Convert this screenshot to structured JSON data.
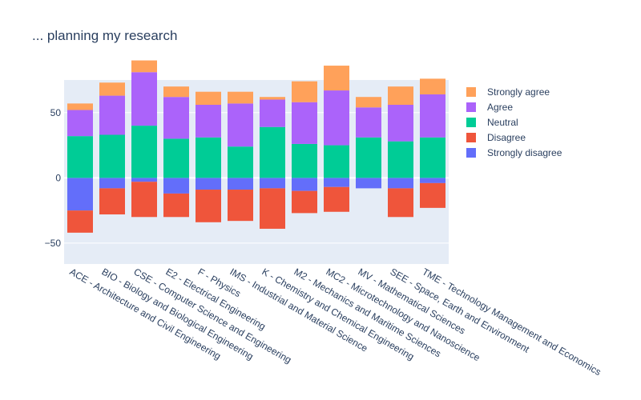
{
  "chart_data": {
    "type": "bar",
    "barmode": "relative",
    "title": "... planning my research",
    "categories": [
      "ACE - Architecture and Civil Engineering",
      "BIO - Biology and Biological Engineering",
      "CSE - Computer Science and Engineering",
      "E2 - Electrical Engineering",
      "F - Physics",
      "IMS - Industrial and Material Science",
      "K - Chemistry and Chemical Engineering",
      "M2 - Mechanics and Maritime Sciences",
      "MC2 - Microtechnology and Nanoscience",
      "MV - Mathematical Sciences",
      "SEE - Space, Earth and Environment",
      "TME - Technology Management and Economics"
    ],
    "series": [
      {
        "name": "Strongly disagree",
        "color": "#636efa",
        "values": [
          -25,
          -8,
          -3,
          -12,
          -9,
          -9,
          -8,
          -10,
          -7,
          -8,
          -8,
          -4
        ]
      },
      {
        "name": "Disagree",
        "color": "#ef553b",
        "values": [
          -17,
          -20,
          -27,
          -18,
          -25,
          -24,
          -31,
          -17,
          -19,
          0,
          -22,
          -19
        ]
      },
      {
        "name": "Neutral",
        "color": "#00cc96",
        "values": [
          32,
          33,
          40,
          30,
          31,
          24,
          39,
          26,
          25,
          31,
          28,
          31
        ]
      },
      {
        "name": "Agree",
        "color": "#ab63fa",
        "values": [
          20,
          30,
          41,
          32,
          25,
          33,
          21,
          32,
          42,
          23,
          28,
          33
        ]
      },
      {
        "name": "Strongly agree",
        "color": "#ffa15a",
        "values": [
          5,
          10,
          9,
          8,
          10,
          9,
          2,
          16,
          19,
          8,
          14,
          12
        ]
      }
    ],
    "ylim": [
      -66,
      75
    ],
    "yticks": [
      -50,
      0,
      50
    ],
    "ytick_labels": [
      "−50",
      "0",
      "50"
    ],
    "legend": "right",
    "grid": true,
    "colors": {
      "plot_bg": "#e5ecf6",
      "grid": "#ffffff",
      "text": "#2a3f5f"
    }
  }
}
